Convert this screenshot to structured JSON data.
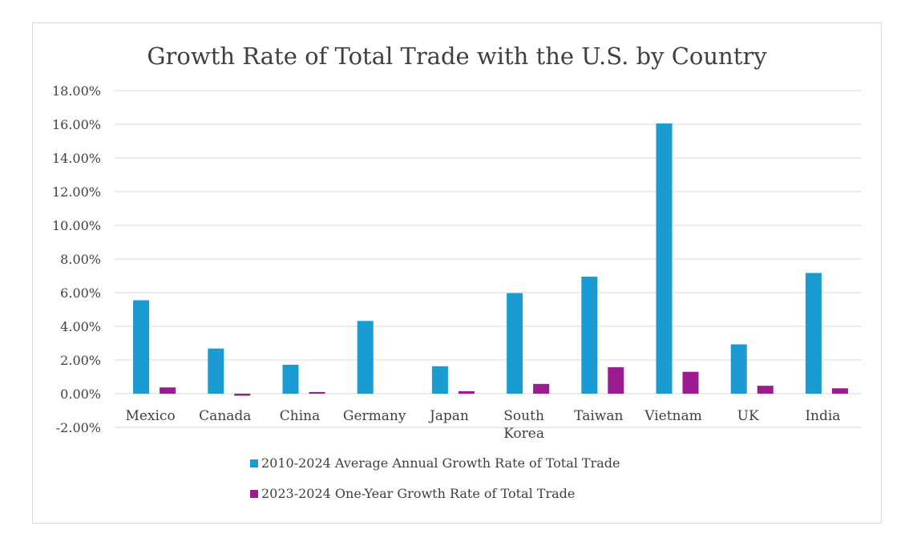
{
  "chart_data": {
    "type": "bar",
    "title": "Growth Rate of Total Trade with the U.S. by Country",
    "xlabel": "",
    "ylabel": "",
    "categories": [
      "Mexico",
      "Canada",
      "China",
      "Germany",
      "Japan",
      "South Korea",
      "Taiwan",
      "Vietnam",
      "UK",
      "India"
    ],
    "category_lines": [
      [
        "Mexico"
      ],
      [
        "Canada"
      ],
      [
        "China"
      ],
      [
        "Germany"
      ],
      [
        "Japan"
      ],
      [
        "South",
        "Korea"
      ],
      [
        "Taiwan"
      ],
      [
        "Vietnam"
      ],
      [
        "UK"
      ],
      [
        "India"
      ]
    ],
    "ylim": [
      -2,
      18
    ],
    "yticks": [
      -2,
      0,
      2,
      4,
      6,
      8,
      10,
      12,
      14,
      16,
      18
    ],
    "ytick_labels": [
      "-2.00%",
      "0.00%",
      "2.00%",
      "4.00%",
      "6.00%",
      "8.00%",
      "10.00%",
      "12.00%",
      "14.00%",
      "16.00%",
      "18.00%"
    ],
    "grid": true,
    "legend_position": "bottom",
    "series": [
      {
        "name": "2010-2024 Average Annual Growth Rate of Total Trade",
        "color": "#1a9bd1",
        "values": [
          5.55,
          2.68,
          1.72,
          4.32,
          1.63,
          5.97,
          6.95,
          16.05,
          2.93,
          7.17
        ]
      },
      {
        "name": "2023-2024 One-Year Growth Rate of Total Trade",
        "color": "#9b1c8f",
        "values": [
          0.37,
          -0.12,
          0.1,
          0.0,
          0.15,
          0.58,
          1.57,
          1.3,
          0.47,
          0.32
        ]
      }
    ]
  }
}
